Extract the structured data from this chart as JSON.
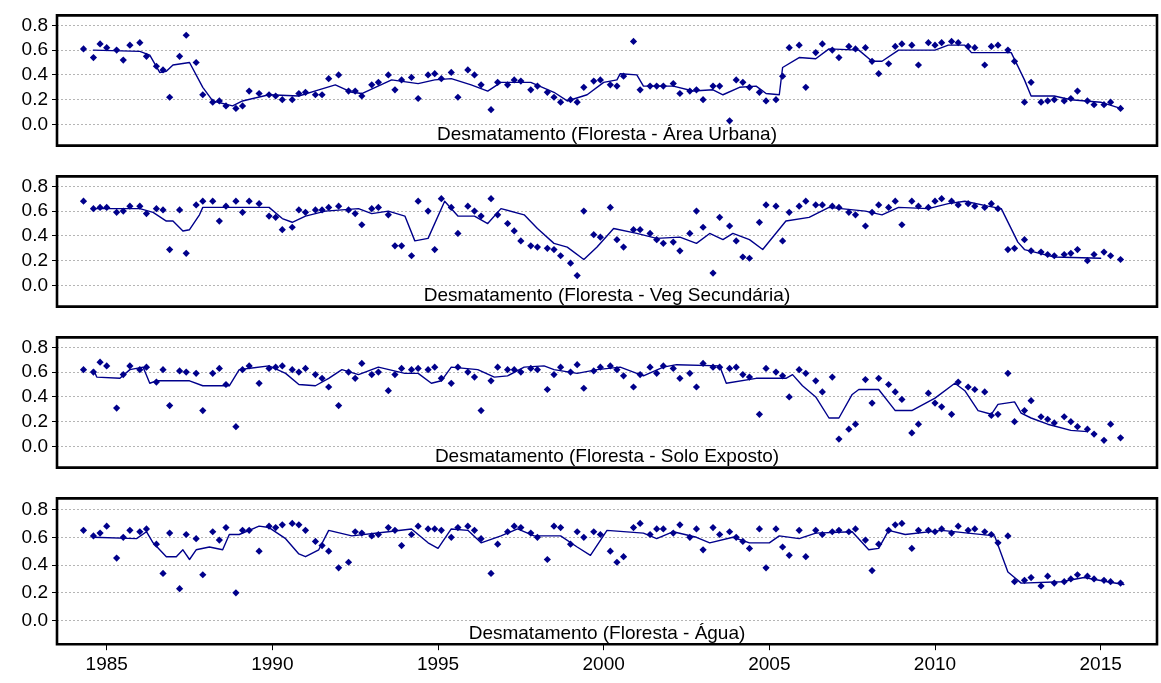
{
  "chart_data": [
    {
      "type": "scatter",
      "title": "Desmatamento (Floresta - Área Urbana)",
      "marker": "diamond",
      "grid": "y",
      "tick_labels": "y",
      "x": [
        1984.3,
        1984.6,
        1984.8,
        1985.0,
        1985.3,
        1985.5,
        1985.7,
        1986.0,
        1986.2,
        1986.5,
        1986.7,
        1986.9,
        1987.2,
        1987.4,
        1987.7,
        1987.9,
        1988.2,
        1988.4,
        1988.6,
        1988.9,
        1989.1,
        1989.3,
        1989.6,
        1989.9,
        1990.1,
        1990.3,
        1990.6,
        1990.8,
        1991.0,
        1991.3,
        1991.5,
        1991.7,
        1992.0,
        1992.3,
        1992.5,
        1992.7,
        1993.0,
        1993.2,
        1993.5,
        1993.7,
        1993.9,
        1994.2,
        1994.4,
        1994.7,
        1994.9,
        1995.1,
        1995.4,
        1995.6,
        1995.9,
        1996.1,
        1996.3,
        1996.6,
        1996.8,
        1997.1,
        1997.3,
        1997.5,
        1997.8,
        1998.0,
        1998.3,
        1998.5,
        1998.7,
        1999.0,
        1999.2,
        1999.4,
        1999.7,
        1999.9,
        2000.2,
        2000.4,
        2000.6,
        2000.9,
        2001.1,
        2001.4,
        2001.6,
        2001.8,
        2002.1,
        2002.3,
        2002.6,
        2002.8,
        2003.0,
        2003.3,
        2003.5,
        2003.8,
        2004.0,
        2004.2,
        2004.4,
        2004.7,
        2004.9,
        2005.2,
        2005.4,
        2005.6,
        2005.9,
        2006.1,
        2006.4,
        2006.6,
        2006.9,
        2007.1,
        2007.4,
        2007.6,
        2007.9,
        2008.1,
        2008.3,
        2008.6,
        2008.8,
        2009.0,
        2009.3,
        2009.5,
        2009.8,
        2010.0,
        2010.2,
        2010.5,
        2010.7,
        2011.0,
        2011.2,
        2011.5,
        2011.7,
        2011.9,
        2012.2,
        2012.4,
        2012.7,
        2012.9,
        2013.2,
        2013.4,
        2013.6,
        2013.9,
        2014.1,
        2014.3,
        2014.6,
        2014.8,
        2015.1,
        2015.3,
        2015.6
      ],
      "series": [
        {
          "type": "scatter",
          "color": "#00008b",
          "values": [
            0.61,
            0.54,
            0.65,
            0.62,
            0.6,
            0.52,
            0.64,
            0.66,
            0.55,
            0.47,
            0.44,
            0.22,
            0.55,
            0.72,
            0.5,
            0.24,
            0.18,
            0.19,
            0.15,
            0.13,
            0.15,
            0.27,
            0.25,
            0.24,
            0.23,
            0.2,
            0.2,
            0.25,
            0.26,
            0.24,
            0.24,
            0.37,
            0.4,
            0.27,
            0.27,
            0.23,
            0.32,
            0.34,
            0.4,
            0.28,
            0.36,
            0.38,
            0.21,
            0.4,
            0.41,
            0.37,
            0.42,
            0.22,
            0.44,
            0.4,
            0.32,
            0.12,
            0.34,
            0.32,
            0.36,
            0.35,
            0.28,
            0.31,
            0.26,
            0.22,
            0.18,
            0.2,
            0.18,
            0.3,
            0.35,
            0.36,
            0.32,
            0.31,
            0.39,
            0.67,
            0.28,
            0.31,
            0.31,
            0.31,
            0.33,
            0.25,
            0.27,
            0.28,
            0.2,
            0.31,
            0.31,
            0.03,
            0.36,
            0.34,
            0.3,
            0.26,
            0.19,
            0.2,
            0.39,
            0.62,
            0.64,
            0.3,
            0.58,
            0.65,
            0.6,
            0.54,
            0.63,
            0.61,
            0.62,
            0.51,
            0.41,
            0.49,
            0.63,
            0.65,
            0.64,
            0.48,
            0.66,
            0.64,
            0.66,
            0.67,
            0.66,
            0.63,
            0.62,
            0.48,
            0.63,
            0.64,
            0.6,
            0.51,
            0.18,
            0.34,
            0.18,
            0.19,
            0.2,
            0.19,
            0.21,
            0.27,
            0.19,
            0.16,
            0.16,
            0.18,
            0.13
          ]
        },
        {
          "type": "line",
          "color": "#00008b",
          "marker": "none",
          "x": [
            1984.6,
            1986.0,
            1986.3,
            1986.6,
            1986.8,
            1987.0,
            1987.5,
            1987.9,
            1988.2,
            1988.8,
            1989.1,
            1989.9,
            1990.8,
            1991.4,
            1991.9,
            1992.4,
            1992.7,
            1993.6,
            1994.4,
            1994.9,
            1995.4,
            1996.0,
            1996.5,
            1996.9,
            1997.8,
            1998.5,
            1998.9,
            1999.5,
            2000.0,
            2000.4,
            2000.5,
            2001.0,
            2001.2,
            2002.1,
            2002.7,
            2003.3,
            2003.6,
            2004.1,
            2004.6,
            2004.9,
            2005.3,
            2005.4,
            2005.9,
            2006.4,
            2006.8,
            2007.7,
            2008.1,
            2008.4,
            2008.9,
            2010.0,
            2010.4,
            2010.9,
            2011.1,
            2012.3,
            2012.7,
            2012.9,
            2013.6,
            2014.1,
            2015.0,
            2015.6
          ],
          "values": [
            0.6,
            0.59,
            0.56,
            0.42,
            0.43,
            0.48,
            0.5,
            0.3,
            0.19,
            0.15,
            0.19,
            0.24,
            0.23,
            0.28,
            0.32,
            0.26,
            0.25,
            0.36,
            0.33,
            0.36,
            0.37,
            0.32,
            0.27,
            0.34,
            0.34,
            0.26,
            0.19,
            0.24,
            0.34,
            0.36,
            0.41,
            0.4,
            0.31,
            0.31,
            0.27,
            0.28,
            0.24,
            0.3,
            0.31,
            0.25,
            0.24,
            0.46,
            0.54,
            0.53,
            0.61,
            0.6,
            0.51,
            0.51,
            0.6,
            0.6,
            0.64,
            0.64,
            0.58,
            0.58,
            0.36,
            0.23,
            0.23,
            0.2,
            0.18,
            0.13
          ]
        }
      ],
      "xlim": [
        1983.5,
        2016.7
      ],
      "xticks": [
        1985,
        1990,
        1995,
        2000,
        2005,
        2010,
        2015
      ],
      "ylim": [
        -0.17,
        0.88
      ],
      "yticks": [
        {
          "value": 0,
          "label": "0.0"
        },
        {
          "value": 0.2,
          "label": "0.2"
        },
        {
          "value": 0.4,
          "label": "0.4"
        },
        {
          "value": 0.6,
          "label": "0.6"
        },
        {
          "value": 0.8,
          "label": "0.8"
        }
      ]
    },
    {
      "type": "scatter",
      "title": "Desmatamento (Floresta - Veg Secundária)",
      "marker": "diamond",
      "grid": "y",
      "tick_labels": "y",
      "x": [
        1984.3,
        1984.6,
        1984.8,
        1985.0,
        1985.3,
        1985.5,
        1985.7,
        1986.0,
        1986.2,
        1986.5,
        1986.7,
        1986.9,
        1987.2,
        1987.4,
        1987.7,
        1987.9,
        1988.2,
        1988.4,
        1988.6,
        1988.9,
        1989.1,
        1989.3,
        1989.6,
        1989.9,
        1990.1,
        1990.3,
        1990.6,
        1990.8,
        1991.0,
        1991.3,
        1991.5,
        1991.7,
        1992.0,
        1992.3,
        1992.5,
        1992.7,
        1993.0,
        1993.2,
        1993.5,
        1993.7,
        1993.9,
        1994.2,
        1994.4,
        1994.7,
        1994.9,
        1995.1,
        1995.4,
        1995.6,
        1995.9,
        1996.1,
        1996.3,
        1996.6,
        1996.8,
        1997.1,
        1997.3,
        1997.5,
        1997.8,
        1998.0,
        1998.3,
        1998.5,
        1998.7,
        1999.0,
        1999.2,
        1999.4,
        1999.7,
        1999.9,
        2000.2,
        2000.4,
        2000.6,
        2000.9,
        2001.1,
        2001.4,
        2001.6,
        2001.8,
        2002.1,
        2002.3,
        2002.6,
        2002.8,
        2003.0,
        2003.3,
        2003.5,
        2003.8,
        2004.0,
        2004.2,
        2004.4,
        2004.7,
        2004.9,
        2005.2,
        2005.4,
        2005.6,
        2005.9,
        2006.1,
        2006.4,
        2006.6,
        2006.9,
        2007.1,
        2007.4,
        2007.6,
        2007.9,
        2008.1,
        2008.3,
        2008.6,
        2008.8,
        2009.0,
        2009.3,
        2009.5,
        2009.8,
        2010.0,
        2010.2,
        2010.5,
        2010.7,
        2011.0,
        2011.2,
        2011.5,
        2011.7,
        2011.9,
        2012.2,
        2012.4,
        2012.7,
        2012.9,
        2013.2,
        2013.4,
        2013.6,
        2013.9,
        2014.1,
        2014.3,
        2014.6,
        2014.8,
        2015.1,
        2015.3,
        2015.6
      ],
      "series": [
        {
          "type": "scatter",
          "color": "#00008b",
          "values": [
            0.68,
            0.62,
            0.63,
            0.63,
            0.59,
            0.6,
            0.64,
            0.64,
            0.58,
            0.62,
            0.61,
            0.29,
            0.61,
            0.26,
            0.65,
            0.68,
            0.68,
            0.52,
            0.64,
            0.68,
            0.59,
            0.68,
            0.66,
            0.56,
            0.55,
            0.45,
            0.47,
            0.61,
            0.59,
            0.61,
            0.61,
            0.63,
            0.64,
            0.61,
            0.58,
            0.49,
            0.62,
            0.63,
            0.57,
            0.32,
            0.32,
            0.24,
            0.68,
            0.6,
            0.29,
            0.7,
            0.63,
            0.42,
            0.64,
            0.6,
            0.56,
            0.7,
            0.57,
            0.5,
            0.44,
            0.36,
            0.32,
            0.31,
            0.3,
            0.29,
            0.24,
            0.18,
            0.08,
            0.6,
            0.41,
            0.39,
            0.63,
            0.37,
            0.31,
            0.45,
            0.45,
            0.42,
            0.37,
            0.34,
            0.35,
            0.28,
            0.42,
            0.6,
            0.47,
            0.1,
            0.55,
            0.48,
            0.36,
            0.23,
            0.22,
            0.51,
            0.65,
            0.64,
            0.36,
            0.59,
            0.64,
            0.68,
            0.65,
            0.65,
            0.64,
            0.63,
            0.59,
            0.57,
            0.48,
            0.59,
            0.65,
            0.63,
            0.68,
            0.49,
            0.68,
            0.64,
            0.63,
            0.68,
            0.7,
            0.68,
            0.65,
            0.66,
            0.64,
            0.63,
            0.66,
            0.62,
            0.29,
            0.3,
            0.37,
            0.28,
            0.27,
            0.25,
            0.24,
            0.25,
            0.26,
            0.29,
            0.2,
            0.25,
            0.27,
            0.24,
            0.21
          ]
        },
        {
          "type": "line",
          "color": "#00008b",
          "marker": "none",
          "x": [
            1984.6,
            1986.0,
            1986.4,
            1986.8,
            1987.0,
            1987.3,
            1987.5,
            1987.8,
            1987.9,
            1989.2,
            1989.9,
            1990.3,
            1990.6,
            1991.0,
            1991.6,
            1992.6,
            1993.0,
            1993.5,
            1994.0,
            1994.3,
            1994.7,
            1995.2,
            1995.6,
            1996.1,
            1996.5,
            1996.9,
            1997.6,
            1998.0,
            1998.5,
            1998.9,
            1999.4,
            1999.8,
            2000.3,
            2001.0,
            2001.6,
            2002.3,
            2002.8,
            2003.2,
            2003.6,
            2003.9,
            2004.4,
            2004.8,
            2005.5,
            2006.2,
            2006.8,
            2007.9,
            2008.4,
            2008.9,
            2009.8,
            2010.4,
            2010.9,
            2011.6,
            2012.0,
            2012.5,
            2012.7,
            2013.6,
            2015.0
          ],
          "values": [
            0.62,
            0.62,
            0.59,
            0.52,
            0.52,
            0.44,
            0.45,
            0.57,
            0.63,
            0.63,
            0.63,
            0.54,
            0.51,
            0.56,
            0.6,
            0.62,
            0.58,
            0.6,
            0.56,
            0.36,
            0.38,
            0.68,
            0.56,
            0.56,
            0.5,
            0.62,
            0.57,
            0.46,
            0.34,
            0.31,
            0.21,
            0.31,
            0.46,
            0.42,
            0.38,
            0.39,
            0.34,
            0.42,
            0.37,
            0.42,
            0.37,
            0.29,
            0.52,
            0.55,
            0.63,
            0.6,
            0.57,
            0.63,
            0.62,
            0.66,
            0.68,
            0.64,
            0.62,
            0.35,
            0.29,
            0.23,
            0.22
          ]
        }
      ],
      "xlim": [
        1983.5,
        2016.7
      ],
      "xticks": [
        1985,
        1990,
        1995,
        2000,
        2005,
        2010,
        2015
      ],
      "ylim": [
        -0.17,
        0.88
      ],
      "yticks": [
        {
          "value": 0,
          "label": "0.0"
        },
        {
          "value": 0.2,
          "label": "0.2"
        },
        {
          "value": 0.4,
          "label": "0.4"
        },
        {
          "value": 0.6,
          "label": "0.6"
        },
        {
          "value": 0.8,
          "label": "0.8"
        }
      ]
    },
    {
      "type": "scatter",
      "title": "Desmatamento (Floresta - Solo Exposto)",
      "marker": "diamond",
      "grid": "y",
      "tick_labels": "y",
      "x": [
        1984.3,
        1984.6,
        1984.8,
        1985.0,
        1985.3,
        1985.5,
        1985.7,
        1986.0,
        1986.2,
        1986.5,
        1986.7,
        1986.9,
        1987.2,
        1987.4,
        1987.7,
        1987.9,
        1988.2,
        1988.4,
        1988.6,
        1988.9,
        1989.1,
        1989.3,
        1989.6,
        1989.9,
        1990.1,
        1990.3,
        1990.6,
        1990.8,
        1991.0,
        1991.3,
        1991.5,
        1991.7,
        1992.0,
        1992.3,
        1992.5,
        1992.7,
        1993.0,
        1993.2,
        1993.5,
        1993.7,
        1993.9,
        1994.2,
        1994.4,
        1994.7,
        1994.9,
        1995.1,
        1995.4,
        1995.6,
        1995.9,
        1996.1,
        1996.3,
        1996.6,
        1996.8,
        1997.1,
        1997.3,
        1997.5,
        1997.8,
        1998.0,
        1998.3,
        1998.5,
        1998.7,
        1999.0,
        1999.2,
        1999.4,
        1999.7,
        1999.9,
        2000.2,
        2000.4,
        2000.6,
        2000.9,
        2001.1,
        2001.4,
        2001.6,
        2001.8,
        2002.1,
        2002.3,
        2002.6,
        2002.8,
        2003.0,
        2003.3,
        2003.5,
        2003.8,
        2004.0,
        2004.2,
        2004.4,
        2004.7,
        2004.9,
        2005.2,
        2005.4,
        2005.6,
        2005.9,
        2006.1,
        2006.4,
        2006.6,
        2006.9,
        2007.1,
        2007.4,
        2007.6,
        2007.9,
        2008.1,
        2008.3,
        2008.6,
        2008.8,
        2009.0,
        2009.3,
        2009.5,
        2009.8,
        2010.0,
        2010.2,
        2010.5,
        2010.7,
        2011.0,
        2011.2,
        2011.5,
        2011.7,
        2011.9,
        2012.2,
        2012.4,
        2012.7,
        2012.9,
        2013.2,
        2013.4,
        2013.6,
        2013.9,
        2014.1,
        2014.3,
        2014.6,
        2014.8,
        2015.1,
        2015.3,
        2015.6
      ],
      "series": [
        {
          "type": "scatter",
          "color": "#00008b",
          "values": [
            0.62,
            0.6,
            0.68,
            0.65,
            0.31,
            0.58,
            0.65,
            0.62,
            0.64,
            0.52,
            0.62,
            0.33,
            0.61,
            0.6,
            0.59,
            0.29,
            0.59,
            0.63,
            0.5,
            0.16,
            0.62,
            0.65,
            0.51,
            0.63,
            0.64,
            0.65,
            0.62,
            0.6,
            0.63,
            0.58,
            0.55,
            0.48,
            0.33,
            0.6,
            0.55,
            0.67,
            0.58,
            0.6,
            0.45,
            0.58,
            0.63,
            0.62,
            0.63,
            0.62,
            0.64,
            0.55,
            0.51,
            0.64,
            0.6,
            0.56,
            0.29,
            0.53,
            0.64,
            0.62,
            0.62,
            0.6,
            0.63,
            0.62,
            0.46,
            0.58,
            0.64,
            0.6,
            0.66,
            0.47,
            0.61,
            0.64,
            0.65,
            0.62,
            0.57,
            0.48,
            0.58,
            0.64,
            0.59,
            0.65,
            0.63,
            0.55,
            0.59,
            0.48,
            0.67,
            0.64,
            0.64,
            0.63,
            0.64,
            0.58,
            0.56,
            0.26,
            0.63,
            0.6,
            0.57,
            0.4,
            0.62,
            0.59,
            0.53,
            0.44,
            0.56,
            0.06,
            0.14,
            0.18,
            0.54,
            0.35,
            0.55,
            0.5,
            0.44,
            0.38,
            0.11,
            0.18,
            0.43,
            0.35,
            0.32,
            0.26,
            0.52,
            0.48,
            0.46,
            0.44,
            0.25,
            0.26,
            0.59,
            0.2,
            0.29,
            0.37,
            0.24,
            0.22,
            0.19,
            0.24,
            0.2,
            0.16,
            0.14,
            0.1,
            0.05,
            0.18,
            0.07
          ]
        },
        {
          "type": "line",
          "color": "#00008b",
          "marker": "none",
          "x": [
            1984.6,
            1984.7,
            1985.4,
            1985.7,
            1986.1,
            1986.3,
            1986.5,
            1987.5,
            1987.9,
            1988.7,
            1989.0,
            1989.9,
            1990.4,
            1990.8,
            1991.3,
            1991.7,
            1992.1,
            1992.6,
            1993.2,
            1994.0,
            1994.4,
            1994.8,
            1995.1,
            1995.4,
            1996.2,
            1996.7,
            1997.1,
            1997.6,
            1998.2,
            1998.5,
            1999.2,
            1999.8,
            2000.5,
            2001.2,
            2001.8,
            2002.2,
            2003.5,
            2003.7,
            2004.6,
            2005.5,
            2005.7,
            2006.0,
            2006.4,
            2006.8,
            2007.1,
            2007.5,
            2007.7,
            2008.3,
            2008.8,
            2009.3,
            2010.0,
            2010.6,
            2010.9,
            2011.3,
            2011.7,
            2011.9,
            2012.4,
            2012.6,
            2012.9,
            2013.4,
            2014.1,
            2014.6
          ],
          "values": [
            0.62,
            0.56,
            0.55,
            0.62,
            0.64,
            0.51,
            0.53,
            0.53,
            0.49,
            0.49,
            0.62,
            0.65,
            0.59,
            0.5,
            0.49,
            0.55,
            0.62,
            0.58,
            0.64,
            0.59,
            0.59,
            0.51,
            0.53,
            0.64,
            0.62,
            0.56,
            0.57,
            0.64,
            0.65,
            0.62,
            0.59,
            0.62,
            0.64,
            0.57,
            0.64,
            0.66,
            0.65,
            0.51,
            0.55,
            0.55,
            0.58,
            0.49,
            0.4,
            0.23,
            0.23,
            0.42,
            0.46,
            0.46,
            0.29,
            0.29,
            0.39,
            0.51,
            0.45,
            0.29,
            0.26,
            0.34,
            0.36,
            0.27,
            0.23,
            0.18,
            0.13,
            0.12
          ]
        }
      ],
      "xlim": [
        1983.5,
        2016.7
      ],
      "xticks": [
        1985,
        1990,
        1995,
        2000,
        2005,
        2010,
        2015
      ],
      "ylim": [
        -0.17,
        0.88
      ],
      "yticks": [
        {
          "value": 0,
          "label": "0.0"
        },
        {
          "value": 0.2,
          "label": "0.2"
        },
        {
          "value": 0.4,
          "label": "0.4"
        },
        {
          "value": 0.6,
          "label": "0.6"
        },
        {
          "value": 0.8,
          "label": "0.8"
        }
      ]
    },
    {
      "type": "scatter",
      "title": "Desmatamento (Floresta - Água)",
      "marker": "diamond",
      "grid": "y",
      "x": [
        1984.3,
        1984.6,
        1984.8,
        1985.0,
        1985.3,
        1985.5,
        1985.7,
        1986.0,
        1986.2,
        1986.5,
        1986.7,
        1986.9,
        1987.2,
        1987.4,
        1987.7,
        1987.9,
        1988.2,
        1988.4,
        1988.6,
        1988.9,
        1989.1,
        1989.3,
        1989.6,
        1989.9,
        1990.1,
        1990.3,
        1990.6,
        1990.8,
        1991.0,
        1991.3,
        1991.5,
        1991.7,
        1992.0,
        1992.3,
        1992.5,
        1992.7,
        1993.0,
        1993.2,
        1993.5,
        1993.7,
        1993.9,
        1994.2,
        1994.4,
        1994.7,
        1994.9,
        1995.1,
        1995.4,
        1995.6,
        1995.9,
        1996.1,
        1996.3,
        1996.6,
        1996.8,
        1997.1,
        1997.3,
        1997.5,
        1997.8,
        1998.0,
        1998.3,
        1998.5,
        1998.7,
        1999.0,
        1999.2,
        1999.4,
        1999.7,
        1999.9,
        2000.2,
        2000.4,
        2000.6,
        2000.9,
        2001.1,
        2001.4,
        2001.6,
        2001.8,
        2002.1,
        2002.3,
        2002.6,
        2002.8,
        2003.0,
        2003.3,
        2003.5,
        2003.8,
        2004.0,
        2004.2,
        2004.4,
        2004.7,
        2004.9,
        2005.2,
        2005.4,
        2005.6,
        2005.9,
        2006.1,
        2006.4,
        2006.6,
        2006.9,
        2007.1,
        2007.4,
        2007.6,
        2007.9,
        2008.1,
        2008.3,
        2008.6,
        2008.8,
        2009.0,
        2009.3,
        2009.5,
        2009.8,
        2010.0,
        2010.2,
        2010.5,
        2010.7,
        2011.0,
        2011.2,
        2011.5,
        2011.7,
        2011.9,
        2012.2,
        2012.4,
        2012.7,
        2012.9,
        2013.2,
        2013.4,
        2013.6,
        2013.9,
        2014.1,
        2014.3,
        2014.6,
        2014.8,
        2015.1,
        2015.3,
        2015.6
      ],
      "series": [
        {
          "type": "scatter",
          "color": "#00008b",
          "values": [
            0.65,
            0.61,
            0.63,
            0.68,
            0.45,
            0.6,
            0.65,
            0.64,
            0.66,
            0.55,
            0.34,
            0.63,
            0.23,
            0.62,
            0.59,
            0.33,
            0.64,
            0.58,
            0.67,
            0.2,
            0.65,
            0.65,
            0.5,
            0.68,
            0.67,
            0.69,
            0.7,
            0.69,
            0.65,
            0.57,
            0.54,
            0.5,
            0.38,
            0.42,
            0.64,
            0.63,
            0.61,
            0.62,
            0.67,
            0.65,
            0.54,
            0.62,
            0.68,
            0.66,
            0.66,
            0.65,
            0.6,
            0.67,
            0.68,
            0.65,
            0.59,
            0.34,
            0.55,
            0.64,
            0.68,
            0.67,
            0.63,
            0.6,
            0.44,
            0.68,
            0.67,
            0.55,
            0.64,
            0.6,
            0.64,
            0.62,
            0.5,
            0.42,
            0.46,
            0.67,
            0.7,
            0.62,
            0.66,
            0.66,
            0.63,
            0.69,
            0.6,
            0.66,
            0.51,
            0.67,
            0.62,
            0.64,
            0.6,
            0.57,
            0.52,
            0.66,
            0.38,
            0.66,
            0.53,
            0.47,
            0.65,
            0.46,
            0.65,
            0.62,
            0.64,
            0.65,
            0.64,
            0.66,
            0.58,
            0.36,
            0.55,
            0.65,
            0.69,
            0.7,
            0.52,
            0.65,
            0.65,
            0.64,
            0.66,
            0.63,
            0.68,
            0.65,
            0.66,
            0.64,
            0.62,
            0.56,
            0.61,
            0.28,
            0.29,
            0.31,
            0.25,
            0.32,
            0.27,
            0.28,
            0.3,
            0.33,
            0.32,
            0.3,
            0.29,
            0.28,
            0.27
          ]
        },
        {
          "type": "line",
          "color": "#00008b",
          "marker": "none",
          "x": [
            1984.6,
            1985.9,
            1986.2,
            1986.4,
            1986.8,
            1987.1,
            1987.3,
            1987.5,
            1987.7,
            1988.1,
            1988.5,
            1988.7,
            1989.0,
            1989.6,
            1989.9,
            1990.4,
            1990.8,
            1991.0,
            1991.4,
            1991.7,
            1992.4,
            1993.5,
            1994.2,
            1994.7,
            1995.0,
            1995.4,
            1995.9,
            1996.3,
            1996.9,
            1997.4,
            1997.9,
            1998.7,
            1999.2,
            1999.6,
            2000.1,
            2001.2,
            2001.6,
            2002.1,
            2002.8,
            2003.2,
            2003.9,
            2004.4,
            2005.0,
            2005.3,
            2005.9,
            2006.4,
            2007.5,
            2008.0,
            2008.3,
            2008.6,
            2009.1,
            2010.2,
            2011.8,
            2012.2,
            2012.6,
            2013.8,
            2014.5,
            2015.2,
            2015.7
          ],
          "values": [
            0.6,
            0.59,
            0.64,
            0.56,
            0.46,
            0.46,
            0.51,
            0.44,
            0.51,
            0.53,
            0.51,
            0.62,
            0.62,
            0.68,
            0.67,
            0.59,
            0.48,
            0.46,
            0.51,
            0.65,
            0.61,
            0.64,
            0.66,
            0.56,
            0.52,
            0.66,
            0.65,
            0.56,
            0.61,
            0.66,
            0.61,
            0.61,
            0.53,
            0.47,
            0.65,
            0.63,
            0.59,
            0.64,
            0.6,
            0.56,
            0.6,
            0.56,
            0.56,
            0.61,
            0.59,
            0.63,
            0.64,
            0.51,
            0.52,
            0.65,
            0.62,
            0.65,
            0.61,
            0.35,
            0.27,
            0.28,
            0.31,
            0.28,
            0.26
          ]
        }
      ],
      "xlim": [
        1983.5,
        2016.7
      ],
      "xticks": [
        1985,
        1990,
        1995,
        2000,
        2005,
        2010,
        2015
      ],
      "ylim": [
        -0.17,
        0.88
      ],
      "yticks": [
        {
          "value": 0,
          "label": "0.0"
        },
        {
          "value": 0.2,
          "label": "0.2"
        },
        {
          "value": 0.4,
          "label": "0.4"
        },
        {
          "value": 0.6,
          "label": "0.6"
        },
        {
          "value": 0.8,
          "label": "0.8"
        }
      ]
    }
  ]
}
